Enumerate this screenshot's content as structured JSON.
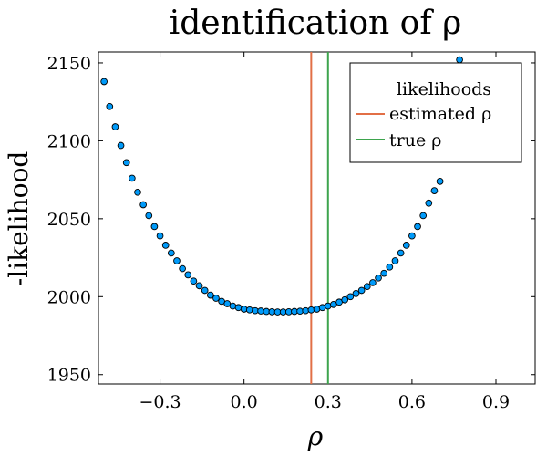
{
  "chart_data": {
    "type": "scatter",
    "title": "identification of ρ",
    "xlabel": "ρ",
    "ylabel": "-likelihood",
    "xlim": [
      -0.52,
      1.04
    ],
    "ylim": [
      1944,
      2157
    ],
    "xticks": [
      -0.3,
      0.0,
      0.3,
      0.6,
      0.9
    ],
    "xtick_labels": [
      "−0.3",
      "0.0",
      "0.3",
      "0.6",
      "0.9"
    ],
    "yticks": [
      1950,
      2000,
      2050,
      2100,
      2150
    ],
    "ytick_labels": [
      "1950",
      "2000",
      "2050",
      "2100",
      "2150"
    ],
    "grid": false,
    "legend": {
      "placement": "top-right",
      "title": "likelihoods",
      "entries": [
        {
          "label": "estimated ρ",
          "color": "#e26f46"
        },
        {
          "label": "true ρ",
          "color": "#3da44d"
        }
      ]
    },
    "point_color": "#009af9",
    "vlines": [
      {
        "label": "estimated ρ",
        "x": 0.24,
        "color": "#e26f46"
      },
      {
        "label": "true ρ",
        "x": 0.3,
        "color": "#3da44d"
      }
    ],
    "points": [
      {
        "x": -0.5,
        "y": 2138
      },
      {
        "x": -0.48,
        "y": 2122
      },
      {
        "x": -0.46,
        "y": 2109
      },
      {
        "x": -0.44,
        "y": 2097
      },
      {
        "x": -0.42,
        "y": 2086
      },
      {
        "x": -0.4,
        "y": 2076
      },
      {
        "x": -0.38,
        "y": 2067
      },
      {
        "x": -0.36,
        "y": 2059
      },
      {
        "x": -0.34,
        "y": 2052
      },
      {
        "x": -0.32,
        "y": 2045
      },
      {
        "x": -0.3,
        "y": 2039
      },
      {
        "x": -0.28,
        "y": 2033
      },
      {
        "x": -0.26,
        "y": 2028
      },
      {
        "x": -0.24,
        "y": 2023
      },
      {
        "x": -0.22,
        "y": 2018
      },
      {
        "x": -0.2,
        "y": 2014
      },
      {
        "x": -0.18,
        "y": 2010
      },
      {
        "x": -0.16,
        "y": 2007
      },
      {
        "x": -0.14,
        "y": 2004
      },
      {
        "x": -0.12,
        "y": 2001
      },
      {
        "x": -0.1,
        "y": 1999
      },
      {
        "x": -0.08,
        "y": 1997
      },
      {
        "x": -0.06,
        "y": 1995.5
      },
      {
        "x": -0.04,
        "y": 1994
      },
      {
        "x": -0.02,
        "y": 1993
      },
      {
        "x": 0.0,
        "y": 1992
      },
      {
        "x": 0.02,
        "y": 1991.5
      },
      {
        "x": 0.04,
        "y": 1991
      },
      {
        "x": 0.06,
        "y": 1990.8
      },
      {
        "x": 0.08,
        "y": 1990.5
      },
      {
        "x": 0.1,
        "y": 1990.3
      },
      {
        "x": 0.12,
        "y": 1990.2
      },
      {
        "x": 0.14,
        "y": 1990.2
      },
      {
        "x": 0.16,
        "y": 1990.3
      },
      {
        "x": 0.18,
        "y": 1990.5
      },
      {
        "x": 0.2,
        "y": 1990.7
      },
      {
        "x": 0.22,
        "y": 1991
      },
      {
        "x": 0.24,
        "y": 1991.5
      },
      {
        "x": 0.26,
        "y": 1992
      },
      {
        "x": 0.28,
        "y": 1993
      },
      {
        "x": 0.3,
        "y": 1994
      },
      {
        "x": 0.32,
        "y": 1995
      },
      {
        "x": 0.34,
        "y": 1996.5
      },
      {
        "x": 0.36,
        "y": 1998
      },
      {
        "x": 0.38,
        "y": 2000
      },
      {
        "x": 0.4,
        "y": 2002
      },
      {
        "x": 0.42,
        "y": 2004
      },
      {
        "x": 0.44,
        "y": 2006.5
      },
      {
        "x": 0.46,
        "y": 2009
      },
      {
        "x": 0.48,
        "y": 2012
      },
      {
        "x": 0.5,
        "y": 2015
      },
      {
        "x": 0.52,
        "y": 2019
      },
      {
        "x": 0.54,
        "y": 2023
      },
      {
        "x": 0.56,
        "y": 2028
      },
      {
        "x": 0.58,
        "y": 2033
      },
      {
        "x": 0.6,
        "y": 2039
      },
      {
        "x": 0.62,
        "y": 2045
      },
      {
        "x": 0.64,
        "y": 2052
      },
      {
        "x": 0.66,
        "y": 2060
      },
      {
        "x": 0.68,
        "y": 2068
      },
      {
        "x": 0.7,
        "y": 2074
      },
      {
        "x": 0.77,
        "y": 2152
      }
    ]
  }
}
